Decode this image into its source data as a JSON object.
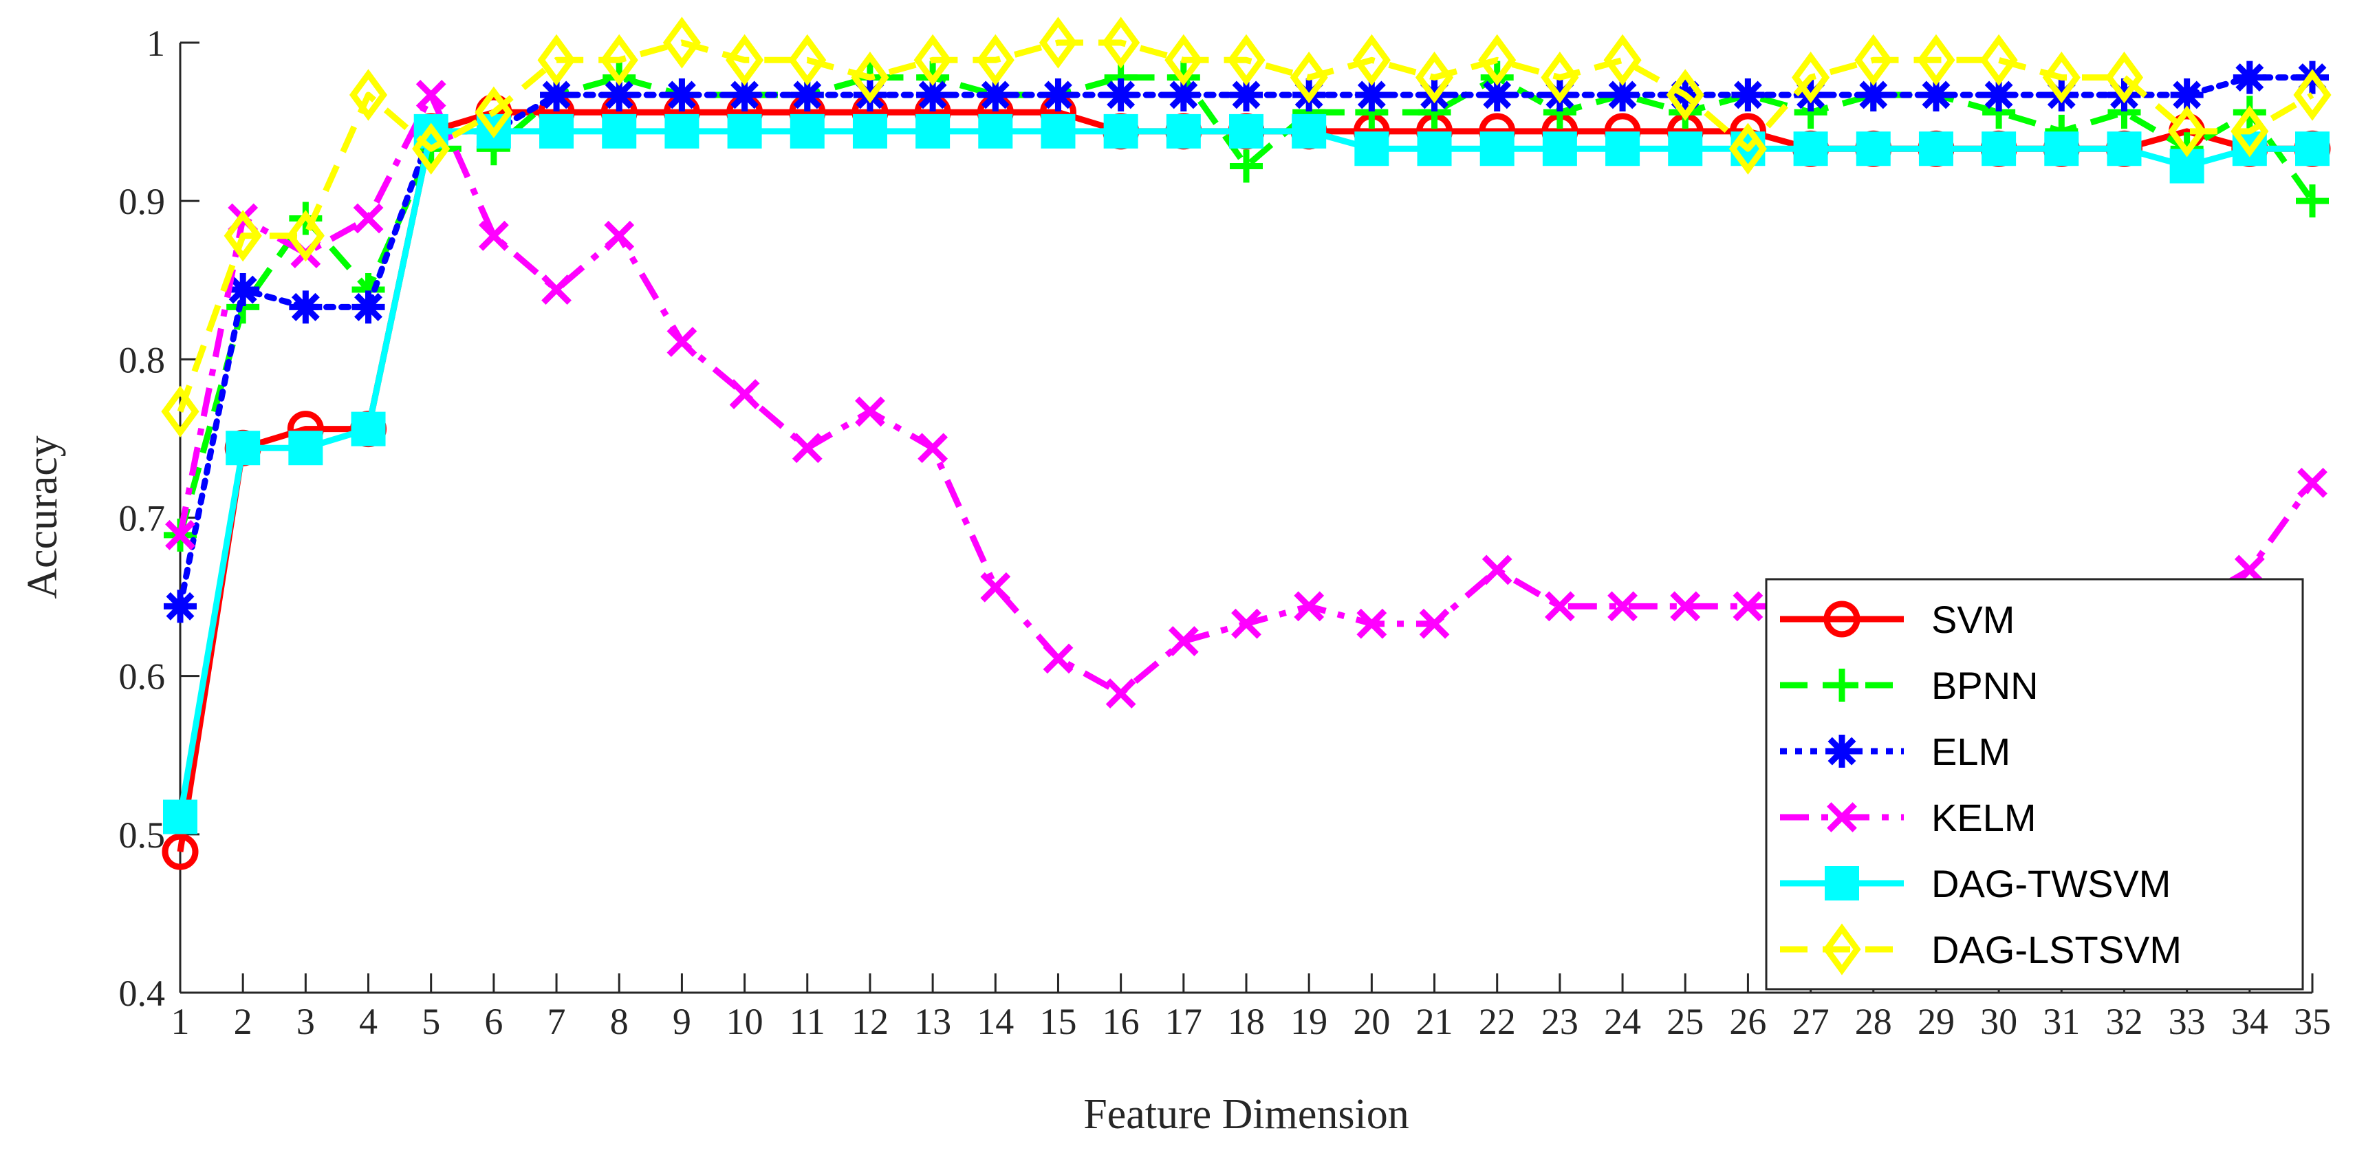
{
  "chart_data": {
    "type": "line",
    "title": "",
    "xlabel": "Feature Dimension",
    "ylabel": "Accuracy",
    "xlim": [
      1,
      35
    ],
    "ylim": [
      0.4,
      1.0
    ],
    "x": [
      1,
      2,
      3,
      4,
      5,
      6,
      7,
      8,
      9,
      10,
      11,
      12,
      13,
      14,
      15,
      16,
      17,
      18,
      19,
      20,
      21,
      22,
      23,
      24,
      25,
      26,
      27,
      28,
      29,
      30,
      31,
      32,
      33,
      34,
      35
    ],
    "x_ticks": [
      "1",
      "2",
      "3",
      "4",
      "5",
      "6",
      "7",
      "8",
      "9",
      "10",
      "11",
      "12",
      "13",
      "14",
      "15",
      "16",
      "17",
      "18",
      "19",
      "20",
      "21",
      "22",
      "23",
      "24",
      "25",
      "26",
      "27",
      "28",
      "29",
      "30",
      "31",
      "32",
      "33",
      "34",
      "35"
    ],
    "y_ticks": [
      "0.4",
      "0.5",
      "0.6",
      "0.7",
      "0.8",
      "0.9",
      "1"
    ],
    "y_tick_values": [
      0.4,
      0.5,
      0.6,
      0.7,
      0.8,
      0.9,
      1.0
    ],
    "grid": false,
    "legend_position": "bottom-right",
    "series": [
      {
        "name": "SVM",
        "color": "#ff0000",
        "dash": "solid",
        "marker": "circle",
        "values": [
          0.489,
          0.744,
          0.756,
          0.756,
          0.944,
          0.956,
          0.956,
          0.956,
          0.956,
          0.956,
          0.956,
          0.956,
          0.956,
          0.956,
          0.956,
          0.944,
          0.944,
          0.944,
          0.944,
          0.944,
          0.944,
          0.944,
          0.944,
          0.944,
          0.944,
          0.944,
          0.933,
          0.933,
          0.933,
          0.933,
          0.933,
          0.933,
          0.944,
          0.933,
          0.933
        ]
      },
      {
        "name": "BPNN",
        "color": "#00ff00",
        "dash": "dashed",
        "marker": "plus",
        "values": [
          0.689,
          0.833,
          0.889,
          0.844,
          0.933,
          0.933,
          0.967,
          0.978,
          0.967,
          0.967,
          0.967,
          0.978,
          0.978,
          0.967,
          0.967,
          0.978,
          0.978,
          0.922,
          0.956,
          0.956,
          0.956,
          0.978,
          0.956,
          0.967,
          0.956,
          0.967,
          0.956,
          0.967,
          0.967,
          0.956,
          0.944,
          0.956,
          0.933,
          0.956,
          0.9
        ]
      },
      {
        "name": "ELM",
        "color": "#0000ff",
        "dash": "dotted",
        "marker": "asterisk",
        "values": [
          0.644,
          0.844,
          0.833,
          0.833,
          0.944,
          0.944,
          0.967,
          0.967,
          0.967,
          0.967,
          0.967,
          0.967,
          0.967,
          0.967,
          0.967,
          0.967,
          0.967,
          0.967,
          0.967,
          0.967,
          0.967,
          0.967,
          0.967,
          0.967,
          0.967,
          0.967,
          0.967,
          0.967,
          0.967,
          0.967,
          0.967,
          0.967,
          0.967,
          0.978,
          0.978
        ]
      },
      {
        "name": "KELM",
        "color": "#ff00ff",
        "dash": "dashdot",
        "marker": "x",
        "values": [
          0.689,
          0.889,
          0.867,
          0.889,
          0.967,
          0.878,
          0.844,
          0.878,
          0.811,
          0.778,
          0.744,
          0.767,
          0.744,
          0.656,
          0.611,
          0.589,
          0.622,
          0.633,
          0.644,
          0.633,
          0.633,
          0.667,
          0.644,
          0.644,
          0.644,
          0.644,
          0.644,
          0.644,
          0.644,
          0.644,
          0.644,
          0.644,
          0.644,
          0.667,
          0.722
        ]
      },
      {
        "name": "DAG-TWSVM",
        "color": "#00ffff",
        "dash": "solid",
        "marker": "square",
        "values": [
          0.511,
          0.744,
          0.744,
          0.756,
          0.944,
          0.944,
          0.944,
          0.944,
          0.944,
          0.944,
          0.944,
          0.944,
          0.944,
          0.944,
          0.944,
          0.944,
          0.944,
          0.944,
          0.944,
          0.933,
          0.933,
          0.933,
          0.933,
          0.933,
          0.933,
          0.933,
          0.933,
          0.933,
          0.933,
          0.933,
          0.933,
          0.933,
          0.922,
          0.933,
          0.933
        ]
      },
      {
        "name": "DAG-LSTSVM",
        "color": "#ffff00",
        "dash": "dashed",
        "marker": "diamond",
        "values": [
          0.767,
          0.878,
          0.878,
          0.967,
          0.933,
          0.956,
          0.989,
          0.989,
          1.0,
          0.989,
          0.989,
          0.978,
          0.989,
          0.989,
          1.0,
          1.0,
          0.989,
          0.989,
          0.978,
          0.989,
          0.978,
          0.989,
          0.978,
          0.989,
          0.967,
          0.933,
          0.978,
          0.989,
          0.989,
          0.989,
          0.978,
          0.978,
          0.944,
          0.944,
          0.967
        ]
      }
    ]
  }
}
